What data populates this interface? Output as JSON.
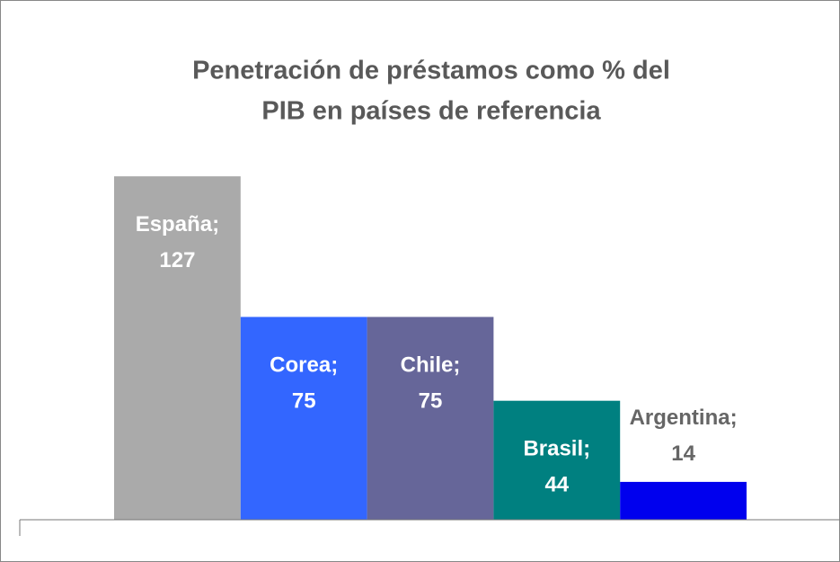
{
  "chart_data": {
    "type": "bar",
    "title": [
      "Penetración de préstamos como % del",
      "PIB en países de referencia"
    ],
    "values": [
      127,
      75,
      75,
      44,
      14
    ],
    "value_labels": [
      "España; 127",
      "Corea; 75",
      "Chile; 75",
      "Brasil; 44",
      "Argentina; 14"
    ],
    "colors": [
      "#aaaaaa",
      "#3366ff",
      "#666699",
      "#008080",
      "#0000ee"
    ],
    "ylim": [
      0,
      140
    ]
  }
}
